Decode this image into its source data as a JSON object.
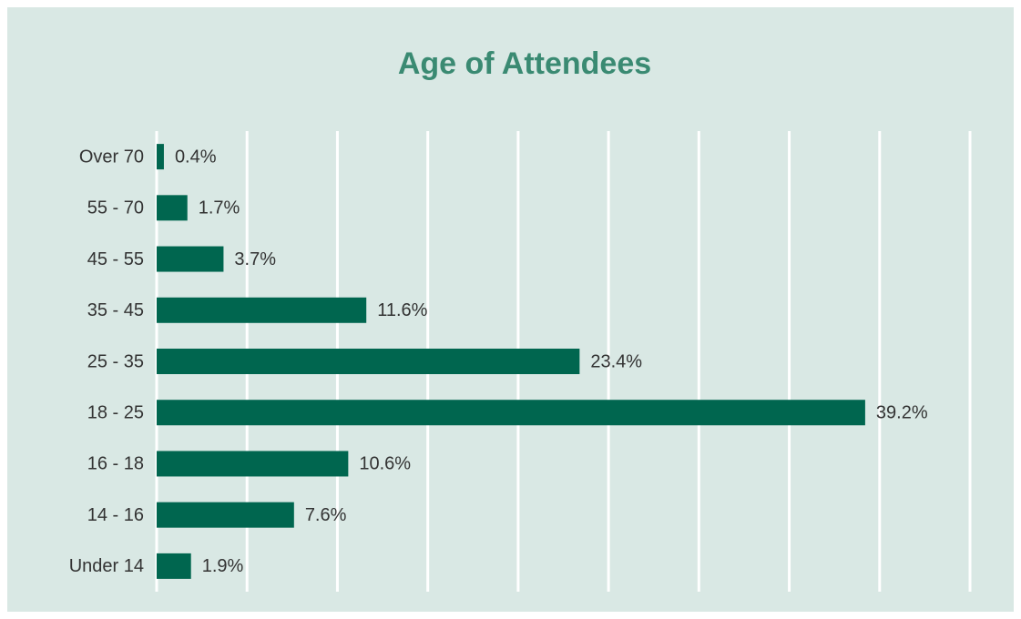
{
  "chart_data": {
    "type": "bar",
    "orientation": "horizontal",
    "title": "Age of Attendees",
    "categories": [
      "Over 70",
      "55 - 70",
      "45 - 55",
      "35 - 45",
      "25 - 35",
      "18 - 25",
      "16 - 18",
      "14 - 16",
      "Under 14"
    ],
    "values": [
      0.4,
      1.7,
      3.7,
      11.6,
      23.4,
      39.2,
      10.6,
      7.6,
      1.9
    ],
    "value_labels": [
      "0.4%",
      "1.7%",
      "3.7%",
      "11.6%",
      "23.4%",
      "39.2%",
      "10.6%",
      "7.6%",
      "1.9%"
    ],
    "color": "#00664f",
    "xlim": [
      0,
      45
    ],
    "xticks": [
      0,
      5,
      10,
      15,
      20,
      25,
      30,
      35,
      40,
      45
    ],
    "grid": true
  }
}
